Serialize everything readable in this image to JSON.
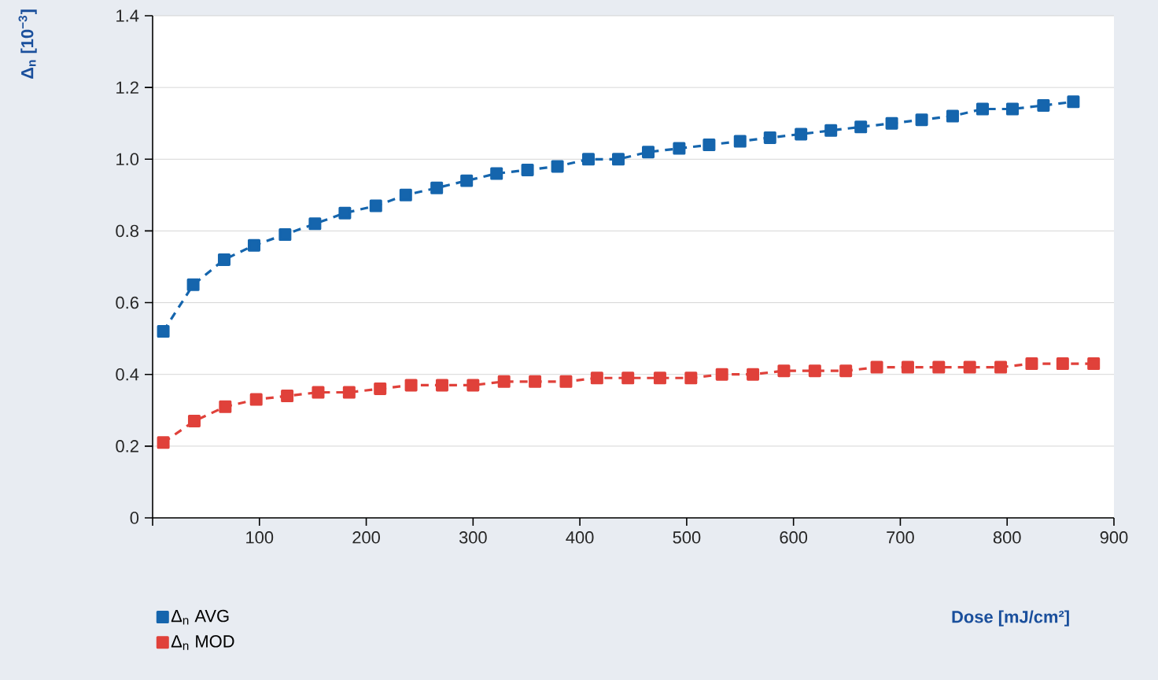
{
  "chart_data": {
    "type": "line",
    "xlabel": "Dose [mJ/cm²]",
    "ylabel": "Δ$_{n}$ [10$^{−3}$]",
    "xlim": [
      0,
      900
    ],
    "ylim": [
      0,
      1.4
    ],
    "xticks": [
      {
        "value": 0,
        "label": null
      },
      100,
      200,
      300,
      400,
      500,
      600,
      700,
      800,
      900
    ],
    "yticks": [
      0,
      0.2,
      0.4,
      0.6,
      0.8,
      {
        "value": 1,
        "label": "1.0"
      },
      1.2,
      1.4
    ],
    "grid": "y",
    "legend": "bottom left",
    "marker": "square",
    "line_style": "dashed",
    "series": [
      {
        "name": "Δ$_{n}$ AVG",
        "color": "#1565ad",
        "x": [
          10,
          38,
          67,
          95,
          124,
          152,
          180,
          209,
          237,
          266,
          294,
          322,
          351,
          379,
          408,
          436,
          464,
          493,
          521,
          550,
          578,
          607,
          635,
          663,
          692,
          720,
          749,
          777,
          805,
          834,
          862
        ],
        "values": [
          0.52,
          0.65,
          0.72,
          0.76,
          0.79,
          0.82,
          0.85,
          0.87,
          0.9,
          0.92,
          0.94,
          0.96,
          0.97,
          0.98,
          1.0,
          1.0,
          1.02,
          1.03,
          1.04,
          1.05,
          1.06,
          1.07,
          1.08,
          1.09,
          1.1,
          1.11,
          1.12,
          1.14,
          1.14,
          1.15,
          1.16
        ]
      },
      {
        "name": "Δ$_{n}$ MOD",
        "color": "#e0413a",
        "x": [
          10,
          39,
          68,
          97,
          126,
          155,
          184,
          213,
          242,
          271,
          300,
          329,
          358,
          387,
          416,
          445,
          475,
          504,
          533,
          562,
          591,
          620,
          649,
          678,
          707,
          736,
          765,
          794,
          823,
          852,
          881
        ],
        "values": [
          0.21,
          0.27,
          0.31,
          0.33,
          0.34,
          0.35,
          0.35,
          0.36,
          0.37,
          0.37,
          0.37,
          0.38,
          0.38,
          0.38,
          0.39,
          0.39,
          0.39,
          0.39,
          0.4,
          0.4,
          0.41,
          0.41,
          0.41,
          0.42,
          0.42,
          0.42,
          0.42,
          0.42,
          0.43,
          0.43,
          0.43
        ]
      }
    ]
  }
}
